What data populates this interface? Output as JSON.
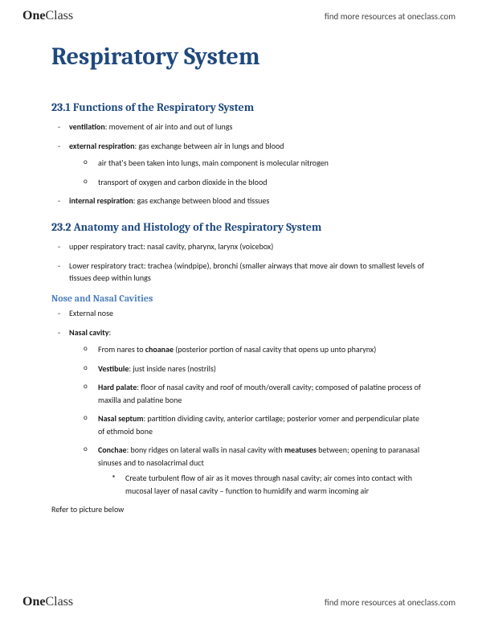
{
  "brand": {
    "prefix": "One",
    "suffix": "Class"
  },
  "header_link": "find more resources at oneclass.com",
  "footer_link": "find more resources at oneclass.com",
  "title": "Respiratory System",
  "sections": {
    "s1": {
      "heading": "23.1 Functions of the Respiratory System",
      "b1_term": "ventilation",
      "b1_rest": ": movement of air into and out of lungs",
      "b2_term": "external respiration",
      "b2_rest": ": gas exchange between air in lungs and blood",
      "b2_sub1": "air that's been taken into lungs, main component is molecular nitrogen",
      "b2_sub2": "transport of oxygen and carbon dioxide in the blood",
      "b3_term": "internal respiration",
      "b3_rest": ": gas exchange between blood and tissues"
    },
    "s2": {
      "heading": "23.2 Anatomy and Histology of the Respiratory System",
      "b1": "upper respiratory tract: nasal cavity, pharynx, larynx (voicebox)",
      "b2": "Lower respiratory tract: trachea (windpipe), bronchi (smaller airways that move air down to smallest levels of tissues deep within lungs"
    },
    "s3": {
      "heading": "Nose and Nasal Cavities",
      "b1": "External nose",
      "b2_term": "Nasal cavity",
      "b2_rest": ":",
      "c1_pre": "From nares to ",
      "c1_term": "choanae",
      "c1_rest": " (posterior portion of nasal cavity that opens up unto pharynx)",
      "c2_term": "Vestibule",
      "c2_rest": ": just inside nares (nostrils)",
      "c3_term": "Hard palate",
      "c3_rest": ": floor of nasal cavity and roof of mouth/overall cavity; composed of palatine process of maxilla and palatine bone",
      "c4_term": "Nasal septum",
      "c4_rest": ": partition dividing cavity, anterior cartilage; posterior vomer and perpendicular plate of ethmoid bone",
      "c5_term": "Conchae",
      "c5_mid": ": bony ridges on lateral walls in nasal cavity with ",
      "c5_term2": "meatuses",
      "c5_rest": " between; opening to paranasal sinuses and to nasolacrimal duct",
      "c5_sub1": "Create turbulent flow of air as it moves through nasal cavity; air comes into contact with mucosal layer of nasal cavity – function to humidify and warm incoming air",
      "closing": "Refer to picture below"
    }
  }
}
